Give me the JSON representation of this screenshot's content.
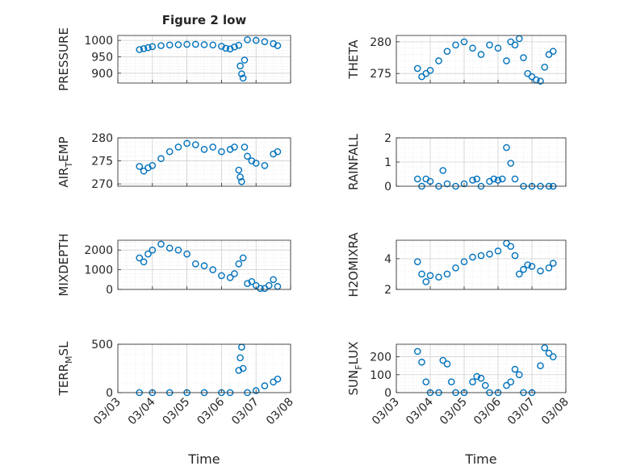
{
  "figure_title": "Figure 2 low",
  "colors": {
    "marker": "#0072BD",
    "grid": "#dfdfdf",
    "axis": "#262626"
  },
  "chart_data": [
    {
      "type": "scatter",
      "ylabel": "PRESSURE",
      "title": "Figure 2 low",
      "xlim": [
        "03/03",
        "03/08"
      ],
      "ylim": [
        870,
        1015
      ],
      "yticks": [
        900,
        950,
        1000
      ],
      "grid": true,
      "minor_grid": true,
      "x": [
        "03/03 15:00",
        "03/03 18:00",
        "03/03 21:00",
        "03/04 00:00",
        "03/04 06:00",
        "03/04 12:00",
        "03/04 18:00",
        "03/05 00:00",
        "03/05 06:00",
        "03/05 12:00",
        "03/05 18:00",
        "03/06 00:00",
        "03/06 03:00",
        "03/06 06:00",
        "03/06 09:00",
        "03/06 12:00",
        "03/06 13:00",
        "03/06 14:00",
        "03/06 15:00",
        "03/06 16:00",
        "03/06 18:00",
        "03/07 00:00",
        "03/07 06:00",
        "03/07 12:00",
        "03/07 15:00"
      ],
      "y": [
        972,
        975,
        978,
        981,
        984,
        986,
        987,
        988,
        988,
        987,
        986,
        982,
        976,
        974,
        980,
        985,
        922,
        898,
        885,
        940,
        1002,
        1000,
        996,
        990,
        984
      ]
    },
    {
      "type": "scatter",
      "ylabel": "THETA",
      "xlim": [
        "03/03",
        "03/08"
      ],
      "ylim": [
        273.5,
        281
      ],
      "yticks": [
        275,
        280
      ],
      "grid": true,
      "minor_grid": true,
      "x": [
        "03/03 15:00",
        "03/03 18:00",
        "03/03 21:00",
        "03/04 00:00",
        "03/04 06:00",
        "03/04 12:00",
        "03/04 18:00",
        "03/05 00:00",
        "03/05 06:00",
        "03/05 12:00",
        "03/05 18:00",
        "03/06 00:00",
        "03/06 06:00",
        "03/06 09:00",
        "03/06 12:00",
        "03/06 15:00",
        "03/06 18:00",
        "03/06 21:00",
        "03/07 00:00",
        "03/07 03:00",
        "03/07 06:00",
        "03/07 09:00",
        "03/07 12:00",
        "03/07 15:00"
      ],
      "y": [
        275.8,
        274.5,
        275.0,
        275.5,
        277.0,
        278.5,
        279.5,
        280.0,
        279.0,
        278.0,
        279.5,
        279.0,
        277.0,
        280.0,
        279.5,
        280.5,
        277.5,
        275.0,
        274.5,
        274.0,
        273.8,
        276.0,
        278.0,
        278.5
      ]
    },
    {
      "type": "scatter",
      "ylabel": "AIR_TEMP",
      "xlim": [
        "03/03",
        "03/08"
      ],
      "ylim": [
        269.5,
        280
      ],
      "yticks": [
        270,
        275,
        280
      ],
      "grid": true,
      "minor_grid": true,
      "x": [
        "03/03 15:00",
        "03/03 18:00",
        "03/03 21:00",
        "03/04 00:00",
        "03/04 06:00",
        "03/04 12:00",
        "03/04 18:00",
        "03/05 00:00",
        "03/05 06:00",
        "03/05 12:00",
        "03/05 18:00",
        "03/06 00:00",
        "03/06 06:00",
        "03/06 09:00",
        "03/06 12:00",
        "03/06 13:00",
        "03/06 14:00",
        "03/06 16:00",
        "03/06 18:00",
        "03/06 21:00",
        "03/07 00:00",
        "03/07 06:00",
        "03/07 12:00",
        "03/07 15:00"
      ],
      "y": [
        273.8,
        272.8,
        273.5,
        274.0,
        275.5,
        277.0,
        278.0,
        278.8,
        278.5,
        277.5,
        278.0,
        277.0,
        277.5,
        278.0,
        273.0,
        271.5,
        270.5,
        278.0,
        276.0,
        275.0,
        274.5,
        274.0,
        276.5,
        277.0
      ]
    },
    {
      "type": "scatter",
      "ylabel": "RAINFALL",
      "xlim": [
        "03/03",
        "03/08"
      ],
      "ylim": [
        0,
        2
      ],
      "yticks": [
        0,
        1,
        2
      ],
      "grid": true,
      "minor_grid": true,
      "x": [
        "03/03 15:00",
        "03/03 18:00",
        "03/03 21:00",
        "03/04 00:00",
        "03/04 06:00",
        "03/04 09:00",
        "03/04 12:00",
        "03/04 18:00",
        "03/05 00:00",
        "03/05 06:00",
        "03/05 09:00",
        "03/05 12:00",
        "03/05 18:00",
        "03/05 21:00",
        "03/06 00:00",
        "03/06 03:00",
        "03/06 06:00",
        "03/06 09:00",
        "03/06 12:00",
        "03/06 18:00",
        "03/07 00:00",
        "03/07 06:00",
        "03/07 12:00",
        "03/07 15:00"
      ],
      "y": [
        0.3,
        0.0,
        0.3,
        0.2,
        0.0,
        0.65,
        0.1,
        0.0,
        0.1,
        0.25,
        0.3,
        0.0,
        0.2,
        0.3,
        0.25,
        0.3,
        1.6,
        0.95,
        0.3,
        0.0,
        0.0,
        0.0,
        0.0,
        0.0
      ]
    },
    {
      "type": "scatter",
      "ylabel": "MIXDEPTH",
      "xlim": [
        "03/03",
        "03/08"
      ],
      "ylim": [
        0,
        2500
      ],
      "yticks": [
        0,
        1000,
        2000
      ],
      "grid": true,
      "minor_grid": true,
      "x": [
        "03/03 15:00",
        "03/03 18:00",
        "03/03 21:00",
        "03/04 00:00",
        "03/04 06:00",
        "03/04 12:00",
        "03/04 18:00",
        "03/05 00:00",
        "03/05 06:00",
        "03/05 12:00",
        "03/05 18:00",
        "03/06 00:00",
        "03/06 06:00",
        "03/06 09:00",
        "03/06 12:00",
        "03/06 15:00",
        "03/06 18:00",
        "03/06 21:00",
        "03/07 00:00",
        "03/07 03:00",
        "03/07 06:00",
        "03/07 09:00",
        "03/07 12:00",
        "03/07 15:00"
      ],
      "y": [
        1600,
        1400,
        1800,
        2000,
        2300,
        2100,
        2000,
        1800,
        1300,
        1200,
        1000,
        700,
        600,
        800,
        1300,
        1600,
        300,
        400,
        200,
        50,
        50,
        200,
        500,
        150
      ]
    },
    {
      "type": "scatter",
      "ylabel": "H2OMIXRA",
      "xlim": [
        "03/03",
        "03/08"
      ],
      "ylim": [
        2,
        5.2
      ],
      "yticks": [
        2,
        4
      ],
      "grid": true,
      "minor_grid": true,
      "x": [
        "03/03 15:00",
        "03/03 18:00",
        "03/03 21:00",
        "03/04 00:00",
        "03/04 06:00",
        "03/04 12:00",
        "03/04 18:00",
        "03/05 00:00",
        "03/05 06:00",
        "03/05 12:00",
        "03/05 18:00",
        "03/06 00:00",
        "03/06 06:00",
        "03/06 09:00",
        "03/06 12:00",
        "03/06 15:00",
        "03/06 18:00",
        "03/06 21:00",
        "03/07 00:00",
        "03/07 06:00",
        "03/07 12:00",
        "03/07 15:00"
      ],
      "y": [
        3.8,
        3.0,
        2.5,
        2.9,
        2.8,
        3.0,
        3.4,
        3.8,
        4.1,
        4.2,
        4.3,
        4.5,
        5.0,
        4.8,
        4.2,
        3.0,
        3.3,
        3.6,
        3.5,
        3.2,
        3.4,
        3.7
      ]
    },
    {
      "type": "scatter",
      "ylabel": "TERR_MSL",
      "xlim": [
        "03/03",
        "03/08"
      ],
      "ylim": [
        0,
        500
      ],
      "yticks": [
        0,
        500
      ],
      "grid": true,
      "minor_grid": true,
      "x": [
        "03/03 15:00",
        "03/04 00:00",
        "03/04 12:00",
        "03/05 00:00",
        "03/05 12:00",
        "03/06 00:00",
        "03/06 06:00",
        "03/06 12:00",
        "03/06 13:00",
        "03/06 14:00",
        "03/06 15:00",
        "03/06 18:00",
        "03/07 00:00",
        "03/07 06:00",
        "03/07 12:00",
        "03/07 15:00"
      ],
      "y": [
        0,
        0,
        0,
        0,
        0,
        0,
        0,
        230,
        360,
        470,
        250,
        0,
        20,
        70,
        110,
        140
      ]
    },
    {
      "type": "scatter",
      "ylabel": "SUN_FLUX",
      "xlim": [
        "03/03",
        "03/08"
      ],
      "ylim": [
        0,
        270
      ],
      "yticks": [
        0,
        100,
        200
      ],
      "grid": true,
      "minor_grid": true,
      "x": [
        "03/03 15:00",
        "03/03 18:00",
        "03/03 21:00",
        "03/04 00:00",
        "03/04 06:00",
        "03/04 09:00",
        "03/04 12:00",
        "03/04 15:00",
        "03/04 18:00",
        "03/05 00:00",
        "03/05 06:00",
        "03/05 09:00",
        "03/05 12:00",
        "03/05 15:00",
        "03/05 18:00",
        "03/06 00:00",
        "03/06 06:00",
        "03/06 09:00",
        "03/06 12:00",
        "03/06 15:00",
        "03/06 18:00",
        "03/07 00:00",
        "03/07 06:00",
        "03/07 09:00",
        "03/07 12:00",
        "03/07 15:00"
      ],
      "y": [
        230,
        170,
        60,
        0,
        0,
        180,
        160,
        60,
        0,
        0,
        60,
        90,
        80,
        40,
        0,
        0,
        40,
        60,
        130,
        100,
        0,
        0,
        150,
        250,
        220,
        200
      ]
    }
  ],
  "xaxis": {
    "tick_labels": [
      "03/03",
      "03/04",
      "03/05",
      "03/06",
      "03/07",
      "03/08"
    ],
    "label": "Time"
  }
}
